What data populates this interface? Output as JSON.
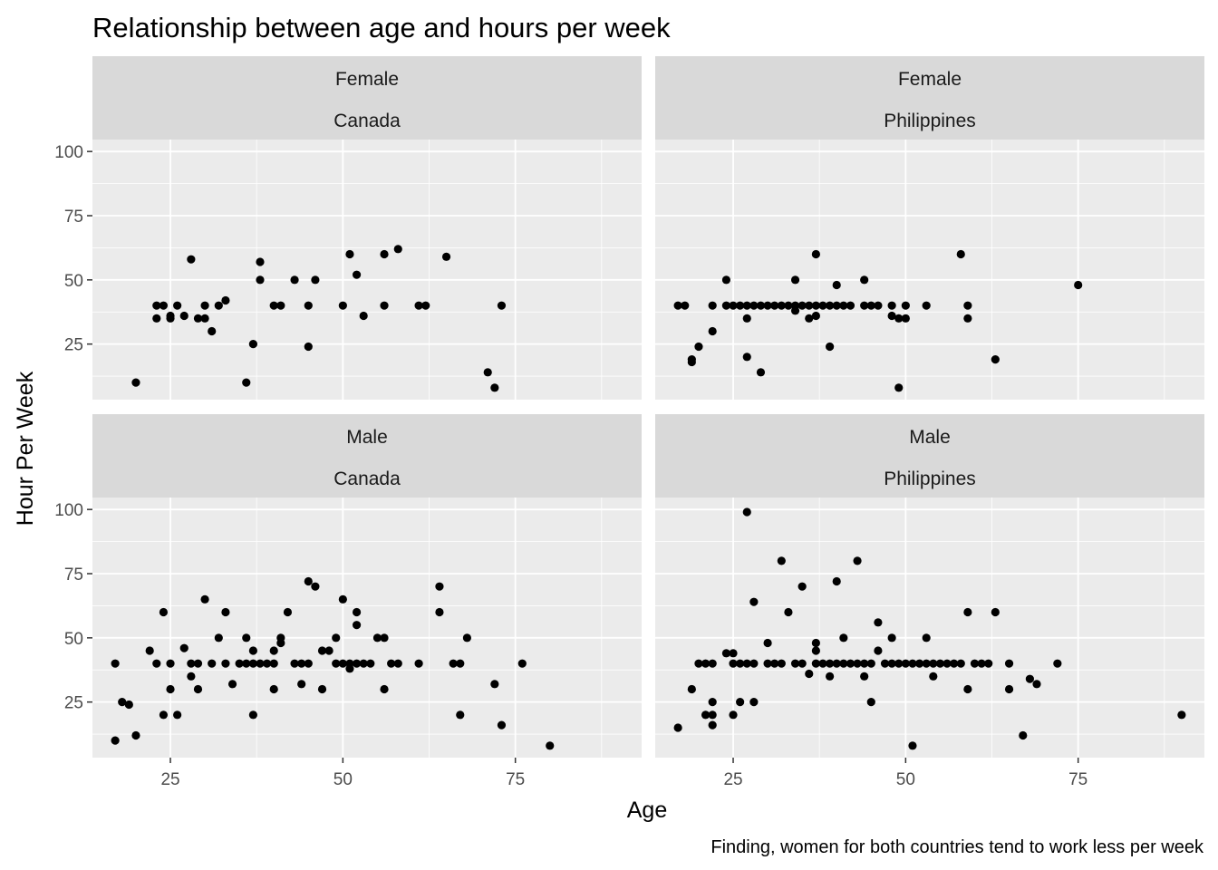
{
  "chart_data": {
    "type": "scatter",
    "title": "Relationship between age and hours per week",
    "xlabel": "Age",
    "ylabel": "Hour Per Week",
    "caption": "Finding, women for both countries tend to work less per week",
    "x_ticks": [
      "25",
      "50",
      "75"
    ],
    "y_ticks": [
      "25",
      "50",
      "75",
      "100"
    ],
    "xlim": [
      13.7,
      93.3
    ],
    "ylim": [
      3.35,
      104.65
    ],
    "grid": true,
    "legend": "none",
    "colors": {
      "panel_bg": "#ebebeb",
      "strip_bg": "#d9d9d9",
      "grid": "#ffffff",
      "point": "#000000",
      "tick": "#333333"
    },
    "panels": [
      {
        "sex": "Female",
        "country": "Canada",
        "points": [
          [
            20,
            10
          ],
          [
            23,
            35
          ],
          [
            23,
            40
          ],
          [
            24,
            40
          ],
          [
            25,
            35
          ],
          [
            25,
            36
          ],
          [
            26,
            40
          ],
          [
            27,
            36
          ],
          [
            28,
            58
          ],
          [
            29,
            35
          ],
          [
            30,
            35
          ],
          [
            30,
            40
          ],
          [
            31,
            30
          ],
          [
            32,
            40
          ],
          [
            33,
            42
          ],
          [
            36,
            10
          ],
          [
            37,
            25
          ],
          [
            38,
            57
          ],
          [
            38,
            50
          ],
          [
            40,
            40
          ],
          [
            41,
            40
          ],
          [
            43,
            50
          ],
          [
            45,
            40
          ],
          [
            45,
            24
          ],
          [
            46,
            50
          ],
          [
            50,
            40
          ],
          [
            51,
            60
          ],
          [
            52,
            52
          ],
          [
            53,
            36
          ],
          [
            56,
            40
          ],
          [
            56,
            60
          ],
          [
            58,
            62
          ],
          [
            61,
            40
          ],
          [
            62,
            40
          ],
          [
            65,
            59
          ],
          [
            71,
            14
          ],
          [
            72,
            8
          ],
          [
            73,
            40
          ]
        ]
      },
      {
        "sex": "Female",
        "country": "Philippines",
        "points": [
          [
            17,
            40
          ],
          [
            18,
            40
          ],
          [
            19,
            18
          ],
          [
            19,
            19
          ],
          [
            20,
            24
          ],
          [
            22,
            30
          ],
          [
            22,
            40
          ],
          [
            24,
            40
          ],
          [
            24,
            50
          ],
          [
            25,
            40
          ],
          [
            26,
            40
          ],
          [
            27,
            40
          ],
          [
            27,
            35
          ],
          [
            27,
            20
          ],
          [
            28,
            40
          ],
          [
            29,
            40
          ],
          [
            29,
            14
          ],
          [
            30,
            40
          ],
          [
            31,
            40
          ],
          [
            32,
            40
          ],
          [
            33,
            40
          ],
          [
            34,
            40
          ],
          [
            34,
            50
          ],
          [
            34,
            38
          ],
          [
            35,
            40
          ],
          [
            36,
            40
          ],
          [
            36,
            35
          ],
          [
            37,
            40
          ],
          [
            37,
            60
          ],
          [
            37,
            36
          ],
          [
            38,
            40
          ],
          [
            39,
            40
          ],
          [
            39,
            24
          ],
          [
            40,
            40
          ],
          [
            40,
            48
          ],
          [
            41,
            40
          ],
          [
            42,
            40
          ],
          [
            44,
            40
          ],
          [
            44,
            50
          ],
          [
            45,
            40
          ],
          [
            46,
            40
          ],
          [
            48,
            40
          ],
          [
            48,
            36
          ],
          [
            49,
            35
          ],
          [
            49,
            8
          ],
          [
            50,
            40
          ],
          [
            50,
            35
          ],
          [
            53,
            40
          ],
          [
            58,
            60
          ],
          [
            59,
            40
          ],
          [
            59,
            35
          ],
          [
            63,
            19
          ],
          [
            75,
            48
          ]
        ]
      },
      {
        "sex": "Male",
        "country": "Canada",
        "points": [
          [
            17,
            40
          ],
          [
            17,
            10
          ],
          [
            18,
            25
          ],
          [
            19,
            24
          ],
          [
            20,
            12
          ],
          [
            22,
            45
          ],
          [
            23,
            40
          ],
          [
            24,
            60
          ],
          [
            24,
            20
          ],
          [
            25,
            40
          ],
          [
            25,
            30
          ],
          [
            26,
            20
          ],
          [
            27,
            46
          ],
          [
            28,
            40
          ],
          [
            28,
            35
          ],
          [
            29,
            30
          ],
          [
            29,
            40
          ],
          [
            30,
            65
          ],
          [
            31,
            40
          ],
          [
            32,
            50
          ],
          [
            33,
            40
          ],
          [
            33,
            60
          ],
          [
            34,
            32
          ],
          [
            35,
            40
          ],
          [
            36,
            50
          ],
          [
            36,
            40
          ],
          [
            37,
            20
          ],
          [
            37,
            45
          ],
          [
            37,
            40
          ],
          [
            38,
            40
          ],
          [
            39,
            40
          ],
          [
            40,
            40
          ],
          [
            40,
            30
          ],
          [
            40,
            45
          ],
          [
            41,
            50
          ],
          [
            41,
            48
          ],
          [
            42,
            60
          ],
          [
            43,
            40
          ],
          [
            44,
            40
          ],
          [
            44,
            32
          ],
          [
            45,
            72
          ],
          [
            45,
            40
          ],
          [
            46,
            70
          ],
          [
            47,
            45
          ],
          [
            47,
            30
          ],
          [
            48,
            45
          ],
          [
            49,
            40
          ],
          [
            49,
            50
          ],
          [
            50,
            65
          ],
          [
            50,
            40
          ],
          [
            51,
            40
          ],
          [
            51,
            38
          ],
          [
            52,
            60
          ],
          [
            52,
            55
          ],
          [
            52,
            40
          ],
          [
            53,
            40
          ],
          [
            54,
            40
          ],
          [
            55,
            50
          ],
          [
            56,
            50
          ],
          [
            56,
            30
          ],
          [
            57,
            40
          ],
          [
            58,
            40
          ],
          [
            61,
            40
          ],
          [
            64,
            70
          ],
          [
            64,
            60
          ],
          [
            66,
            40
          ],
          [
            67,
            40
          ],
          [
            67,
            20
          ],
          [
            68,
            50
          ],
          [
            72,
            32
          ],
          [
            73,
            16
          ],
          [
            76,
            40
          ],
          [
            80,
            8
          ]
        ]
      },
      {
        "sex": "Male",
        "country": "Philippines",
        "points": [
          [
            17,
            15
          ],
          [
            19,
            30
          ],
          [
            20,
            40
          ],
          [
            21,
            40
          ],
          [
            21,
            20
          ],
          [
            22,
            20
          ],
          [
            22,
            40
          ],
          [
            22,
            25
          ],
          [
            22,
            16
          ],
          [
            24,
            44
          ],
          [
            25,
            44
          ],
          [
            25,
            40
          ],
          [
            25,
            20
          ],
          [
            26,
            25
          ],
          [
            26,
            40
          ],
          [
            27,
            40
          ],
          [
            27,
            99
          ],
          [
            28,
            40
          ],
          [
            28,
            25
          ],
          [
            28,
            64
          ],
          [
            30,
            48
          ],
          [
            30,
            40
          ],
          [
            31,
            40
          ],
          [
            32,
            80
          ],
          [
            32,
            40
          ],
          [
            33,
            60
          ],
          [
            34,
            40
          ],
          [
            35,
            70
          ],
          [
            35,
            40
          ],
          [
            36,
            36
          ],
          [
            37,
            40
          ],
          [
            37,
            45
          ],
          [
            37,
            48
          ],
          [
            38,
            40
          ],
          [
            39,
            40
          ],
          [
            39,
            35
          ],
          [
            40,
            40
          ],
          [
            40,
            72
          ],
          [
            41,
            40
          ],
          [
            41,
            50
          ],
          [
            42,
            40
          ],
          [
            43,
            80
          ],
          [
            43,
            40
          ],
          [
            44,
            35
          ],
          [
            44,
            40
          ],
          [
            45,
            40
          ],
          [
            45,
            25
          ],
          [
            46,
            45
          ],
          [
            46,
            56
          ],
          [
            47,
            40
          ],
          [
            48,
            50
          ],
          [
            48,
            40
          ],
          [
            49,
            40
          ],
          [
            50,
            40
          ],
          [
            51,
            8
          ],
          [
            51,
            40
          ],
          [
            52,
            40
          ],
          [
            53,
            50
          ],
          [
            53,
            40
          ],
          [
            54,
            35
          ],
          [
            54,
            40
          ],
          [
            55,
            40
          ],
          [
            56,
            40
          ],
          [
            57,
            40
          ],
          [
            58,
            40
          ],
          [
            59,
            30
          ],
          [
            59,
            60
          ],
          [
            60,
            40
          ],
          [
            61,
            40
          ],
          [
            62,
            40
          ],
          [
            63,
            60
          ],
          [
            65,
            40
          ],
          [
            65,
            30
          ],
          [
            67,
            12
          ],
          [
            68,
            34
          ],
          [
            69,
            32
          ],
          [
            72,
            40
          ],
          [
            90,
            20
          ]
        ]
      }
    ]
  }
}
